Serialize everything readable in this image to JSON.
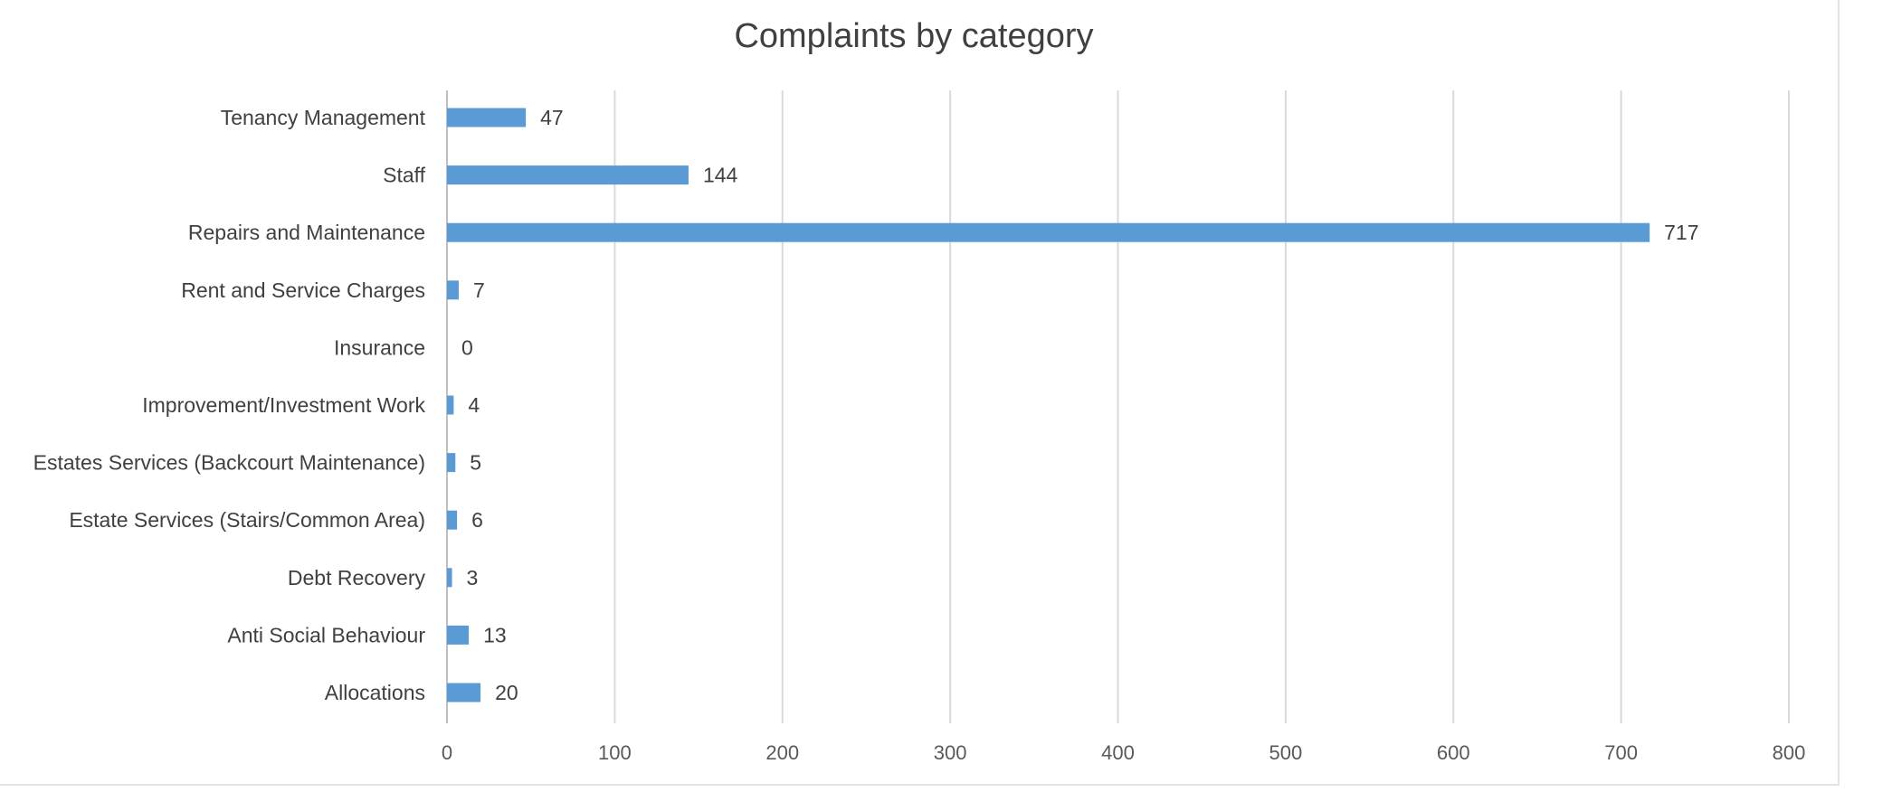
{
  "chart_data": {
    "type": "bar",
    "orientation": "horizontal",
    "title": "Complaints by category",
    "categories": [
      "Tenancy Management",
      "Staff",
      "Repairs and Maintenance",
      "Rent and Service Charges",
      "Insurance",
      "Improvement/Investment Work",
      "Estates Services (Backcourt Maintenance)",
      "Estate Services (Stairs/Common Area)",
      "Debt Recovery",
      "Anti Social Behaviour",
      "Allocations"
    ],
    "values": [
      47,
      144,
      717,
      7,
      0,
      4,
      5,
      6,
      3,
      13,
      20
    ],
    "xlim": [
      0,
      800
    ],
    "xticks": [
      "0",
      "100",
      "200",
      "300",
      "400",
      "500",
      "600",
      "700",
      "800"
    ],
    "xlabel": "",
    "ylabel": "",
    "grid": "vertical",
    "legend": "none",
    "data_labels": true,
    "colors": {
      "bar": "#5b9bd5",
      "grid": "#d9d9d9",
      "text": "#404040"
    }
  }
}
